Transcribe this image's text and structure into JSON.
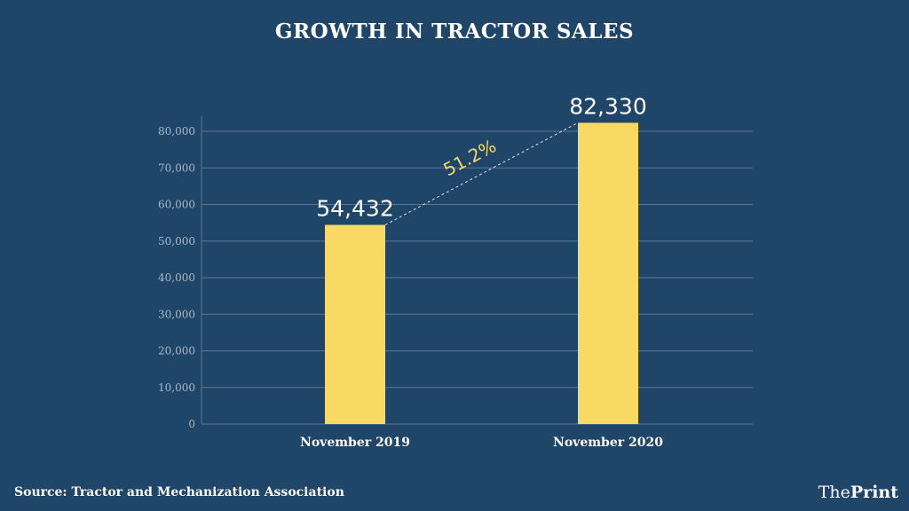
{
  "chart_data": {
    "type": "bar",
    "title": "GROWTH IN TRACTOR SALES",
    "categories": [
      "November 2019",
      "November 2020"
    ],
    "values": [
      54432,
      82330
    ],
    "data_labels": [
      "54,432",
      "82,330"
    ],
    "growth_annotation": "51.2%",
    "ylim": [
      0,
      84000
    ],
    "yticks": [
      0,
      10000,
      20000,
      30000,
      40000,
      50000,
      60000,
      70000,
      80000
    ],
    "ytick_labels": [
      "0",
      "10,000",
      "20,000",
      "30,000",
      "40,000",
      "50,000",
      "60,000",
      "70,000",
      "80,000"
    ],
    "xlabel": "",
    "ylabel": "",
    "grid": true
  },
  "footer": {
    "source": "Source: Tractor and Mechanization Association",
    "logo_the": "The",
    "logo_print": "Print"
  },
  "colors": {
    "background": "#1f4568",
    "bar": "#f7d964",
    "annotation": "#f7d964",
    "grid": "#5d7894",
    "tick_text": "#aab8c6"
  }
}
